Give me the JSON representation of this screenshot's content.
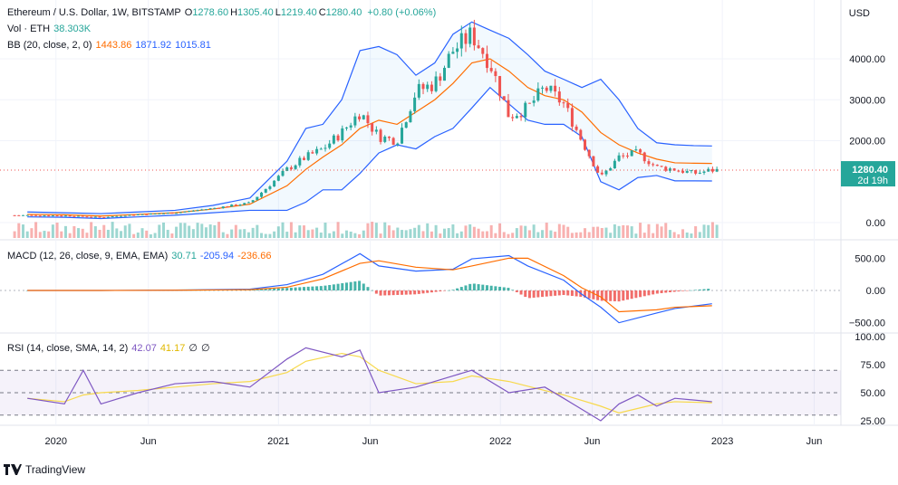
{
  "header": {
    "pair": "Ethereum / U.S. Dollar, 1W, BITSTAMP",
    "ohlc": [
      {
        "k": "O",
        "v": "1278.60"
      },
      {
        "k": "H",
        "v": "1305.40"
      },
      {
        "k": "L",
        "v": "1219.40"
      },
      {
        "k": "C",
        "v": "1280.40"
      }
    ],
    "change": "+0.80 (+0.06%)",
    "currency": "USD"
  },
  "volume_legend": {
    "label": "Vol · ETH",
    "value": "38.303K"
  },
  "bb_legend": {
    "label": "BB (20, close, 2, 0)",
    "basis": "1443.86",
    "upper": "1871.92",
    "lower": "1015.81"
  },
  "macd_legend": {
    "label": "MACD (12, 26, close, 9, EMA, EMA)",
    "histogram": "30.71",
    "macd": "-205.94",
    "signal": "-236.66"
  },
  "rsi_legend": {
    "label": "RSI (14, close, SMA, 14, 2)",
    "rsi": "42.07",
    "ma": "41.17",
    "extra1": "∅",
    "extra2": "∅"
  },
  "price_tag": {
    "value": "1280.40",
    "countdown": "2d 19h"
  },
  "price_axis": [
    "4000.00",
    "3000.00",
    "2000.00",
    "0.00"
  ],
  "macd_axis": [
    "500.00",
    "0.00",
    "−500.00"
  ],
  "rsi_axis": [
    "100.00",
    "75.00",
    "50.00",
    "25.00"
  ],
  "time_axis": [
    "2020",
    "Jun",
    "2021",
    "Jun",
    "2022",
    "Jun",
    "2023",
    "Jun"
  ],
  "brand": "TradingView",
  "colors": {
    "up": "#26a69a",
    "down": "#ef5350",
    "bb": "#2962ff",
    "basis": "#ff6d00",
    "rsi": "#7e57c2",
    "rsi_ma": "#f7d94c",
    "grid": "#f0f3fa"
  },
  "chart_data": [
    {
      "type": "candlestick",
      "title": "Ethereum / U.S. Dollar, 1W, BITSTAMP",
      "ylabel": "USD",
      "ylim": [
        0,
        5000
      ],
      "x_ticks": [
        "2020",
        "Jun",
        "2021",
        "Jun",
        "2022",
        "Jun",
        "2023",
        "Jun"
      ],
      "close_series": {
        "dates": [
          "2019-11",
          "2020-01",
          "2020-03",
          "2020-05",
          "2020-07",
          "2020-09",
          "2020-11",
          "2021-01",
          "2021-02",
          "2021-03",
          "2021-04",
          "2021-05",
          "2021-06",
          "2021-07",
          "2021-08",
          "2021-09",
          "2021-10",
          "2021-11",
          "2021-12",
          "2022-01",
          "2022-02",
          "2022-03",
          "2022-04",
          "2022-05",
          "2022-06",
          "2022-07",
          "2022-08",
          "2022-09",
          "2022-10",
          "2022-11",
          "2022-12"
        ],
        "values": [
          180,
          170,
          130,
          200,
          240,
          350,
          480,
          1300,
          1600,
          1800,
          2200,
          2700,
          2100,
          2000,
          3200,
          3400,
          4200,
          4600,
          3900,
          2600,
          2800,
          3300,
          2900,
          2000,
          1100,
          1600,
          1700,
          1350,
          1300,
          1200,
          1280
        ]
      },
      "series": [
        {
          "name": "BB upper",
          "values": [
            260,
            240,
            220,
            260,
            300,
            420,
            600,
            1500,
            2300,
            2400,
            3000,
            4200,
            4300,
            4100,
            3600,
            3900,
            4600,
            4900,
            4700,
            4500,
            4100,
            3700,
            3500,
            3300,
            3500,
            3000,
            2300,
            1950,
            1900,
            1880,
            1872
          ]
        },
        {
          "name": "BB basis",
          "values": [
            200,
            190,
            160,
            200,
            240,
            330,
            450,
            900,
            1300,
            1600,
            1900,
            2300,
            2500,
            2400,
            2700,
            3000,
            3400,
            3900,
            4000,
            3700,
            3300,
            3100,
            3000,
            2700,
            2200,
            1900,
            1700,
            1550,
            1460,
            1450,
            1444
          ]
        },
        {
          "name": "BB lower",
          "values": [
            140,
            130,
            100,
            140,
            180,
            240,
            300,
            300,
            500,
            800,
            800,
            1200,
            1700,
            1900,
            1800,
            2100,
            2300,
            2800,
            3300,
            2900,
            2500,
            2400,
            2400,
            2100,
            1000,
            800,
            1100,
            1150,
            1020,
            1020,
            1016
          ]
        }
      ]
    },
    {
      "type": "bar",
      "title": "Vol · ETH",
      "last_value": "38.303K"
    },
    {
      "type": "line",
      "title": "MACD (12, 26, close, 9, EMA, EMA)",
      "ylim": [
        -550,
        650
      ],
      "dates": [
        "2019-11",
        "2020-03",
        "2020-07",
        "2020-11",
        "2021-01",
        "2021-03",
        "2021-05",
        "2021-06",
        "2021-08",
        "2021-10",
        "2021-11",
        "2022-01",
        "2022-02",
        "2022-04",
        "2022-05",
        "2022-06",
        "2022-07",
        "2022-09",
        "2022-10",
        "2022-12"
      ],
      "series": [
        {
          "name": "MACD",
          "values": [
            0,
            0,
            5,
            20,
            90,
            250,
            570,
            380,
            300,
            330,
            490,
            540,
            380,
            160,
            -60,
            -260,
            -500,
            -350,
            -280,
            -206
          ]
        },
        {
          "name": "Signal",
          "values": [
            0,
            0,
            3,
            12,
            50,
            180,
            420,
            460,
            360,
            320,
            380,
            500,
            500,
            230,
            40,
            -100,
            -330,
            -300,
            -260,
            -237
          ]
        }
      ],
      "histogram_last": 30.71
    },
    {
      "type": "line",
      "title": "RSI (14, close, SMA, 14, 2)",
      "ylim": [
        20,
        100
      ],
      "bands": [
        30,
        50,
        70
      ],
      "dates": [
        "2019-11",
        "2020-01",
        "2020-02",
        "2020-03",
        "2020-05",
        "2020-07",
        "2020-09",
        "2020-11",
        "2021-01",
        "2021-02",
        "2021-04",
        "2021-05",
        "2021-06",
        "2021-08",
        "2021-10",
        "2021-11",
        "2022-01",
        "2022-03",
        "2022-04",
        "2022-06",
        "2022-07",
        "2022-08",
        "2022-09",
        "2022-10",
        "2022-12"
      ],
      "series": [
        {
          "name": "RSI",
          "values": [
            45,
            40,
            70,
            40,
            50,
            58,
            60,
            55,
            80,
            90,
            82,
            88,
            50,
            55,
            65,
            70,
            50,
            55,
            45,
            25,
            40,
            48,
            38,
            45,
            42
          ]
        },
        {
          "name": "RSI MA",
          "values": [
            45,
            42,
            48,
            50,
            52,
            55,
            58,
            60,
            68,
            78,
            85,
            82,
            70,
            58,
            60,
            65,
            60,
            52,
            48,
            38,
            32,
            36,
            40,
            42,
            41
          ]
        }
      ]
    }
  ]
}
